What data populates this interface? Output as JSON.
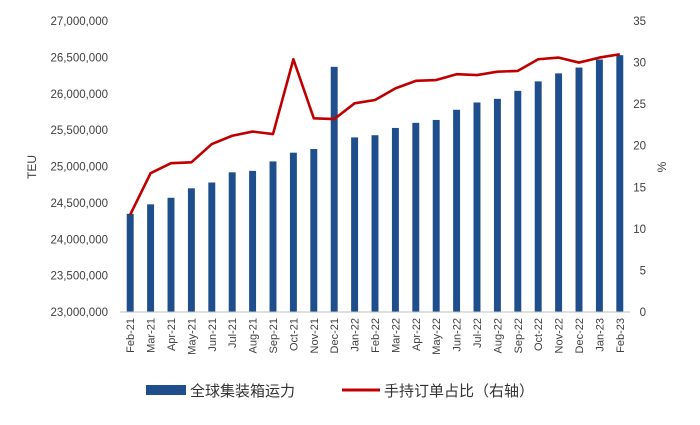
{
  "chart_data": {
    "type": "bar+line",
    "categories": [
      "Feb-21",
      "Mar-21",
      "Apr-21",
      "May-21",
      "Jun-21",
      "Jul-21",
      "Aug-21",
      "Sep-21",
      "Oct-21",
      "Nov-21",
      "Dec-21",
      "Jan-22",
      "Feb-22",
      "Mar-22",
      "Apr-22",
      "May-22",
      "Jun-22",
      "Jul-22",
      "Aug-22",
      "Sep-22",
      "Oct-22",
      "Nov-22",
      "Dec-22",
      "Jan-23",
      "Feb-23"
    ],
    "series": [
      {
        "name": "全球集装箱运力",
        "type": "bar",
        "axis": "left",
        "color": "#1f4e8c",
        "values": [
          24350000,
          24480000,
          24570000,
          24700000,
          24780000,
          24920000,
          24940000,
          25070000,
          25190000,
          25240000,
          26370000,
          25400000,
          25430000,
          25530000,
          25600000,
          25640000,
          25780000,
          25880000,
          25930000,
          26040000,
          26170000,
          26280000,
          26360000,
          26470000,
          26530000
        ]
      },
      {
        "name": "手持订单占比（右轴）",
        "type": "line",
        "axis": "right",
        "color": "#c00000",
        "values": [
          11.7,
          16.7,
          17.9,
          18.0,
          20.2,
          21.2,
          21.7,
          21.4,
          30.4,
          23.3,
          23.2,
          25.1,
          25.5,
          26.9,
          27.8,
          27.9,
          28.6,
          28.5,
          28.9,
          29.0,
          30.4,
          30.6,
          30.0,
          30.6,
          31.0
        ]
      }
    ],
    "ylabel_left": "TEU",
    "ylabel_right": "%",
    "ylim_left": [
      23000000,
      27000000
    ],
    "ylim_right": [
      0,
      35
    ],
    "yticks_left": [
      "23,000,000",
      "23,500,000",
      "24,000,000",
      "24,500,000",
      "25,000,000",
      "25,500,000",
      "26,000,000",
      "26,500,000",
      "27,000,000"
    ],
    "yticks_right": [
      "0",
      "5",
      "10",
      "15",
      "20",
      "25",
      "30",
      "35"
    ],
    "grid": false,
    "legend_position": "bottom"
  }
}
